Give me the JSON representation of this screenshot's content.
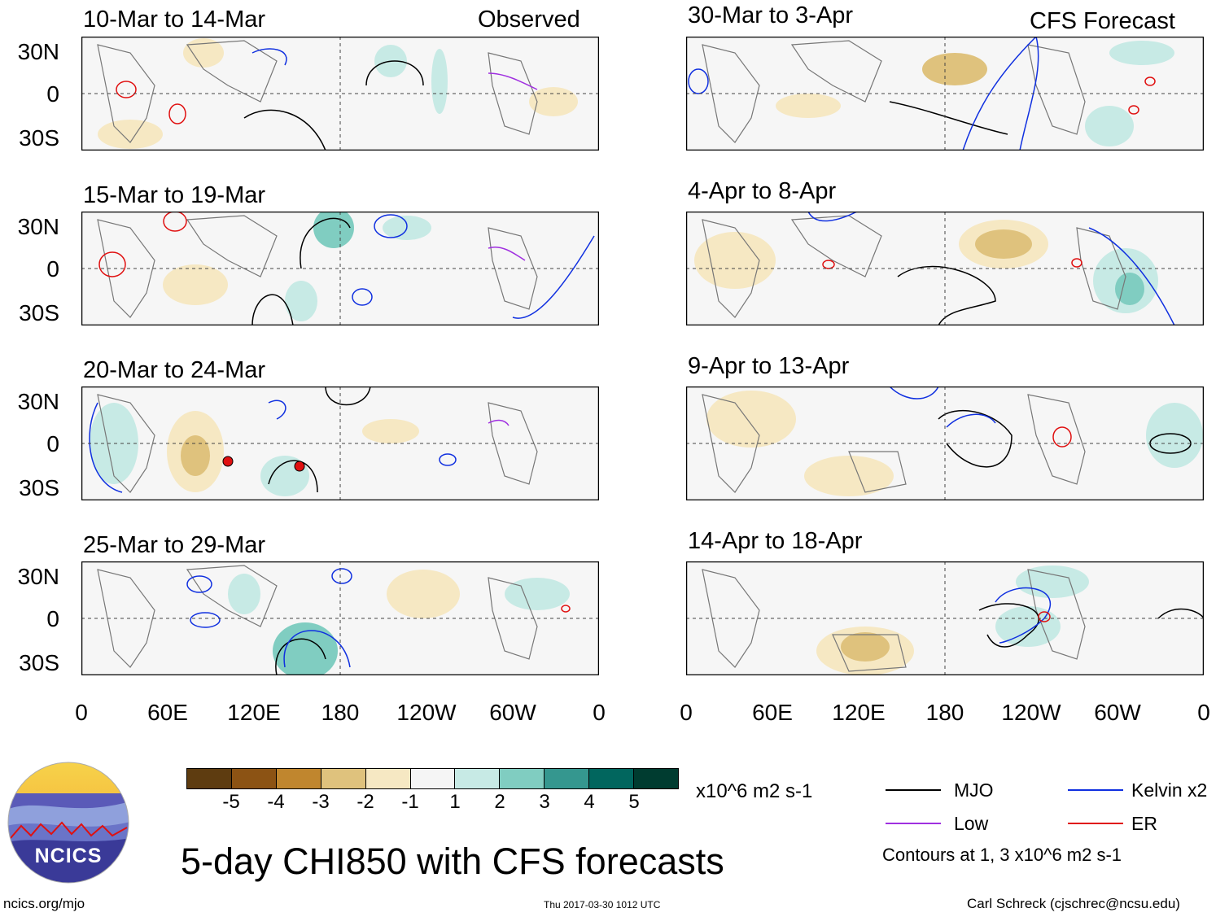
{
  "panels_left": [
    {
      "title": "10-Mar to 14-Mar",
      "tag": "Observed"
    },
    {
      "title": "15-Mar to 19-Mar",
      "tag": ""
    },
    {
      "title": "20-Mar to 24-Mar",
      "tag": ""
    },
    {
      "title": "25-Mar to 29-Mar",
      "tag": ""
    }
  ],
  "panels_right": [
    {
      "title": "30-Mar to 3-Apr",
      "tag": "CFS Forecast"
    },
    {
      "title": "4-Apr to 8-Apr",
      "tag": ""
    },
    {
      "title": "9-Apr to 13-Apr",
      "tag": ""
    },
    {
      "title": "14-Apr to 18-Apr",
      "tag": ""
    }
  ],
  "lat_labels": [
    "30N",
    "0",
    "30S"
  ],
  "lon_labels": [
    "0",
    "60E",
    "120E",
    "180",
    "120W",
    "60W",
    "0"
  ],
  "colorbar": {
    "ticks": [
      "-5",
      "-4",
      "-3",
      "-2",
      "-1",
      "1",
      "2",
      "3",
      "4",
      "5"
    ],
    "units": "x10^6 m2 s-1",
    "colors": [
      "#5e3c10",
      "#8c5314",
      "#c0862e",
      "#dfc27d",
      "#f6e8c3",
      "#f5f5f5",
      "#c7eae5",
      "#80cdc1",
      "#35978f",
      "#01665e",
      "#003c30"
    ]
  },
  "legend": {
    "items": [
      {
        "label": "MJO",
        "color": "#000000"
      },
      {
        "label": "Kelvin x2",
        "color": "#1030e0"
      },
      {
        "label": "Low",
        "color": "#a030e0"
      },
      {
        "label": "ER",
        "color": "#e01010"
      }
    ],
    "note": "Contours at 1, 3 x10^6 m2 s-1"
  },
  "logo_text": "NCICS",
  "main_title": "5-day CHI850 with CFS forecasts",
  "footer": {
    "left": "ncics.org/mjo",
    "center": "Thu 2017-03-30 1012 UTC",
    "right": "Carl Schreck (cjschrec@ncsu.edu)"
  }
}
